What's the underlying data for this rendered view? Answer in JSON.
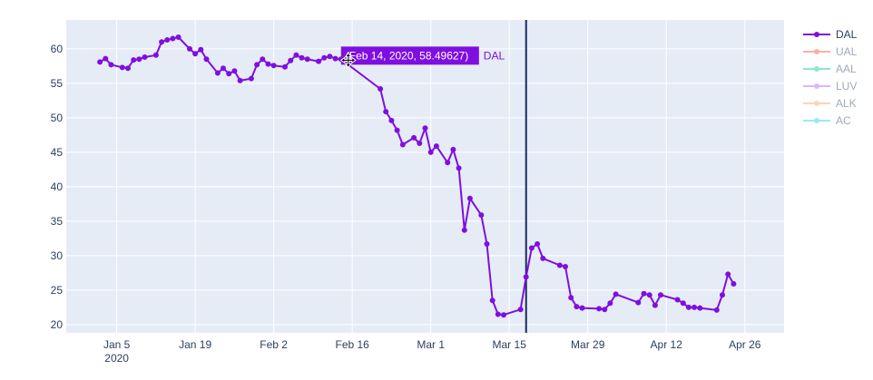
{
  "chart_data": {
    "type": "line",
    "title": "",
    "xlabel": "",
    "ylabel": "",
    "xlim": [
      "2019-12-27",
      "2020-05-03"
    ],
    "ylim": [
      18.8,
      64.2
    ],
    "grid": true,
    "legend_position": "right",
    "x_ticks": [
      {
        "date": "2020-01-05",
        "label": "Jan 5",
        "sublabel": "2020"
      },
      {
        "date": "2020-01-19",
        "label": "Jan 19",
        "sublabel": ""
      },
      {
        "date": "2020-02-02",
        "label": "Feb 2",
        "sublabel": ""
      },
      {
        "date": "2020-02-16",
        "label": "Feb 16",
        "sublabel": ""
      },
      {
        "date": "2020-03-01",
        "label": "Mar 1",
        "sublabel": ""
      },
      {
        "date": "2020-03-15",
        "label": "Mar 15",
        "sublabel": ""
      },
      {
        "date": "2020-03-29",
        "label": "Mar 29",
        "sublabel": ""
      },
      {
        "date": "2020-04-12",
        "label": "Apr 12",
        "sublabel": ""
      },
      {
        "date": "2020-04-26",
        "label": "Apr 26",
        "sublabel": ""
      }
    ],
    "y_ticks": [
      20,
      25,
      30,
      35,
      40,
      45,
      50,
      55,
      60
    ],
    "series": [
      {
        "name": "DAL",
        "color": "#7f0fdf",
        "visible": true,
        "points": [
          [
            "2020-01-02",
            58.1
          ],
          [
            "2020-01-03",
            58.6
          ],
          [
            "2020-01-04",
            57.7
          ],
          [
            "2020-01-06",
            57.3
          ],
          [
            "2020-01-07",
            57.2
          ],
          [
            "2020-01-08",
            58.4
          ],
          [
            "2020-01-09",
            58.5
          ],
          [
            "2020-01-10",
            58.8
          ],
          [
            "2020-01-12",
            59.1
          ],
          [
            "2020-01-13",
            61.0
          ],
          [
            "2020-01-14",
            61.3
          ],
          [
            "2020-01-15",
            61.5
          ],
          [
            "2020-01-16",
            61.7
          ],
          [
            "2020-01-18",
            60.0
          ],
          [
            "2020-01-19",
            59.3
          ],
          [
            "2020-01-20",
            59.9
          ],
          [
            "2020-01-21",
            58.5
          ],
          [
            "2020-01-23",
            56.5
          ],
          [
            "2020-01-24",
            57.2
          ],
          [
            "2020-01-25",
            56.4
          ],
          [
            "2020-01-26",
            56.8
          ],
          [
            "2020-01-27",
            55.4
          ],
          [
            "2020-01-29",
            55.7
          ],
          [
            "2020-01-30",
            57.7
          ],
          [
            "2020-01-31",
            58.5
          ],
          [
            "2020-02-01",
            57.8
          ],
          [
            "2020-02-02",
            57.6
          ],
          [
            "2020-02-04",
            57.4
          ],
          [
            "2020-02-05",
            58.3
          ],
          [
            "2020-02-06",
            59.1
          ],
          [
            "2020-02-07",
            58.7
          ],
          [
            "2020-02-08",
            58.5
          ],
          [
            "2020-02-10",
            58.2
          ],
          [
            "2020-02-11",
            58.7
          ],
          [
            "2020-02-12",
            58.9
          ],
          [
            "2020-02-13",
            58.6
          ],
          [
            "2020-02-14",
            58.49627
          ],
          [
            "2020-02-21",
            54.2
          ],
          [
            "2020-02-22",
            50.9
          ],
          [
            "2020-02-23",
            49.6
          ],
          [
            "2020-02-24",
            48.2
          ],
          [
            "2020-02-25",
            46.1
          ],
          [
            "2020-02-27",
            47.1
          ],
          [
            "2020-02-28",
            46.3
          ],
          [
            "2020-02-29",
            48.5
          ],
          [
            "2020-03-01",
            45.0
          ],
          [
            "2020-03-02",
            45.9
          ],
          [
            "2020-03-04",
            43.5
          ],
          [
            "2020-03-05",
            45.4
          ],
          [
            "2020-03-06",
            42.7
          ],
          [
            "2020-03-07",
            33.7
          ],
          [
            "2020-03-08",
            38.3
          ],
          [
            "2020-03-10",
            35.9
          ],
          [
            "2020-03-11",
            31.7
          ],
          [
            "2020-03-12",
            23.5
          ],
          [
            "2020-03-13",
            21.5
          ],
          [
            "2020-03-14",
            21.4
          ],
          [
            "2020-03-17",
            22.2
          ],
          [
            "2020-03-18",
            26.9
          ],
          [
            "2020-03-19",
            31.1
          ],
          [
            "2020-03-20",
            31.7
          ],
          [
            "2020-03-21",
            29.6
          ],
          [
            "2020-03-24",
            28.6
          ],
          [
            "2020-03-25",
            28.4
          ],
          [
            "2020-03-26",
            23.9
          ],
          [
            "2020-03-27",
            22.6
          ],
          [
            "2020-03-28",
            22.4
          ],
          [
            "2020-03-31",
            22.3
          ],
          [
            "2020-04-01",
            22.2
          ],
          [
            "2020-04-02",
            23.1
          ],
          [
            "2020-04-03",
            24.4
          ],
          [
            "2020-04-07",
            23.2
          ],
          [
            "2020-04-08",
            24.5
          ],
          [
            "2020-04-09",
            24.3
          ],
          [
            "2020-04-10",
            22.8
          ],
          [
            "2020-04-11",
            24.3
          ],
          [
            "2020-04-14",
            23.6
          ],
          [
            "2020-04-15",
            23.1
          ],
          [
            "2020-04-16",
            22.5
          ],
          [
            "2020-04-17",
            22.5
          ],
          [
            "2020-04-18",
            22.4
          ],
          [
            "2020-04-21",
            22.1
          ],
          [
            "2020-04-22",
            24.3
          ],
          [
            "2020-04-23",
            27.3
          ],
          [
            "2020-04-24",
            25.9
          ]
        ]
      },
      {
        "name": "UAL",
        "color": "#ef553b",
        "visible": false,
        "points": []
      },
      {
        "name": "AAL",
        "color": "#00cc96",
        "visible": false,
        "points": []
      },
      {
        "name": "LUV",
        "color": "#ab63fa",
        "visible": false,
        "points": []
      },
      {
        "name": "ALK",
        "color": "#ffa15a",
        "visible": false,
        "points": []
      },
      {
        "name": "AC",
        "color": "#19d3f3",
        "visible": false,
        "points": []
      }
    ],
    "annotations": {
      "vertical_line_date": "2020-03-18",
      "vertical_line_color": "#1a2a5e",
      "hover_date": "2020-02-14",
      "hover_value": 58.49627,
      "hover_label": "(Feb 14, 2020, 58.49627)",
      "hover_series": "DAL"
    }
  }
}
